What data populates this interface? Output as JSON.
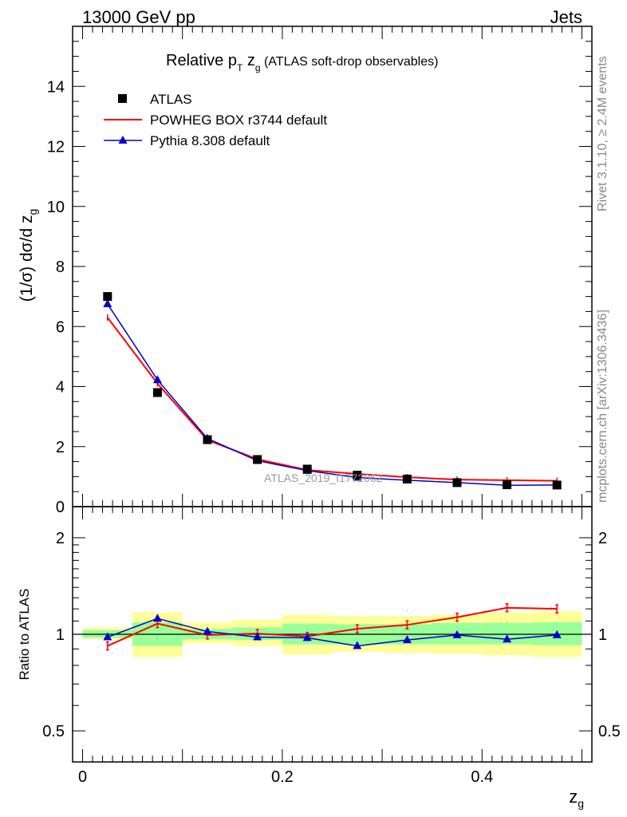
{
  "header": {
    "left": "13000 GeV pp",
    "right": "Jets"
  },
  "side_labels": {
    "rivet": "Rivet 3.1.10, ≥ 2.4M events",
    "mcplots": "mcplots.cern.ch [arXiv:1306.3436]"
  },
  "title": {
    "main": "Relative p",
    "sub1": "T",
    "mid": " z",
    "sub2": "g",
    "tail": " (ATLAS soft-drop observables)"
  },
  "watermark": "ATLAS_2019_I1772062",
  "ylabel_top": {
    "main": "(1/σ) dσ/d z",
    "sub": "g"
  },
  "ylabel_bottom": "Ratio to ATLAS",
  "xlabel": {
    "main": "z",
    "sub": "g"
  },
  "colors": {
    "atlas": "#000000",
    "powheg": "#ff0000",
    "pythia": "#0000cc",
    "band_inner": "#99ff99",
    "band_outer": "#ffff99"
  },
  "chart_data": [
    {
      "type": "line",
      "panel": "main",
      "xlim": [
        -0.01,
        0.51
      ],
      "ylim": [
        0,
        16
      ],
      "x_ticks": [
        0,
        0.2,
        0.4
      ],
      "y_ticks": [
        0,
        2,
        4,
        6,
        8,
        10,
        12,
        14
      ],
      "x_tick_labels": [
        "0",
        "0.2",
        "0.4"
      ],
      "y_tick_labels": [
        "0",
        "2",
        "4",
        "6",
        "8",
        "10",
        "12",
        "14"
      ],
      "x": [
        0.025,
        0.075,
        0.125,
        0.175,
        0.225,
        0.275,
        0.325,
        0.375,
        0.425,
        0.475
      ],
      "series": [
        {
          "name": "ATLAS",
          "marker": "square",
          "values": [
            7.0,
            3.8,
            2.23,
            1.57,
            1.25,
            1.05,
            0.92,
            0.8,
            0.73,
            0.72
          ]
        },
        {
          "name": "POWHEG BOX r3744 default",
          "marker": "line",
          "values": [
            6.3,
            4.1,
            2.22,
            1.58,
            1.22,
            1.09,
            0.98,
            0.9,
            0.88,
            0.86
          ]
        },
        {
          "name": "Pythia 8.308 default",
          "marker": "triangle",
          "values": [
            6.75,
            4.22,
            2.27,
            1.53,
            1.2,
            0.97,
            0.88,
            0.8,
            0.71,
            0.72
          ]
        }
      ],
      "legend": "top-left"
    },
    {
      "type": "line",
      "panel": "ratio",
      "ylabel": "Ratio to ATLAS",
      "log_y": true,
      "ylim": [
        0.4,
        2.5
      ],
      "y_ticks": [
        0.5,
        1,
        2
      ],
      "y_tick_labels": [
        "0.5",
        "1",
        "2"
      ],
      "x": [
        0.025,
        0.075,
        0.125,
        0.175,
        0.225,
        0.275,
        0.325,
        0.375,
        0.425,
        0.475
      ],
      "series": [
        {
          "name": "POWHEG BOX r3744 default",
          "values": [
            0.92,
            1.08,
            0.995,
            1.005,
            0.985,
            1.04,
            1.07,
            1.13,
            1.21,
            1.2
          ]
        },
        {
          "name": "Pythia 8.308 default",
          "values": [
            0.98,
            1.12,
            1.02,
            0.98,
            0.975,
            0.92,
            0.96,
            0.995,
            0.965,
            0.995
          ]
        }
      ],
      "bins": [
        [
          0,
          0.05
        ],
        [
          0.05,
          0.1
        ],
        [
          0.1,
          0.15
        ],
        [
          0.15,
          0.2
        ],
        [
          0.2,
          0.25
        ],
        [
          0.25,
          0.3
        ],
        [
          0.3,
          0.35
        ],
        [
          0.35,
          0.4
        ],
        [
          0.4,
          0.45
        ],
        [
          0.45,
          0.5
        ]
      ],
      "band_inner": [
        [
          0.975,
          1.03
        ],
        [
          0.92,
          1.09
        ],
        [
          0.965,
          1.04
        ],
        [
          0.96,
          1.05
        ],
        [
          0.93,
          1.08
        ],
        [
          0.93,
          1.075
        ],
        [
          0.93,
          1.075
        ],
        [
          0.93,
          1.085
        ],
        [
          0.93,
          1.085
        ],
        [
          0.925,
          1.09
        ]
      ],
      "band_outer": [
        [
          0.965,
          1.05
        ],
        [
          0.85,
          1.17
        ],
        [
          0.935,
          1.09
        ],
        [
          0.92,
          1.11
        ],
        [
          0.865,
          1.15
        ],
        [
          0.88,
          1.14
        ],
        [
          0.875,
          1.14
        ],
        [
          0.87,
          1.15
        ],
        [
          0.86,
          1.17
        ],
        [
          0.85,
          1.18
        ]
      ]
    }
  ]
}
